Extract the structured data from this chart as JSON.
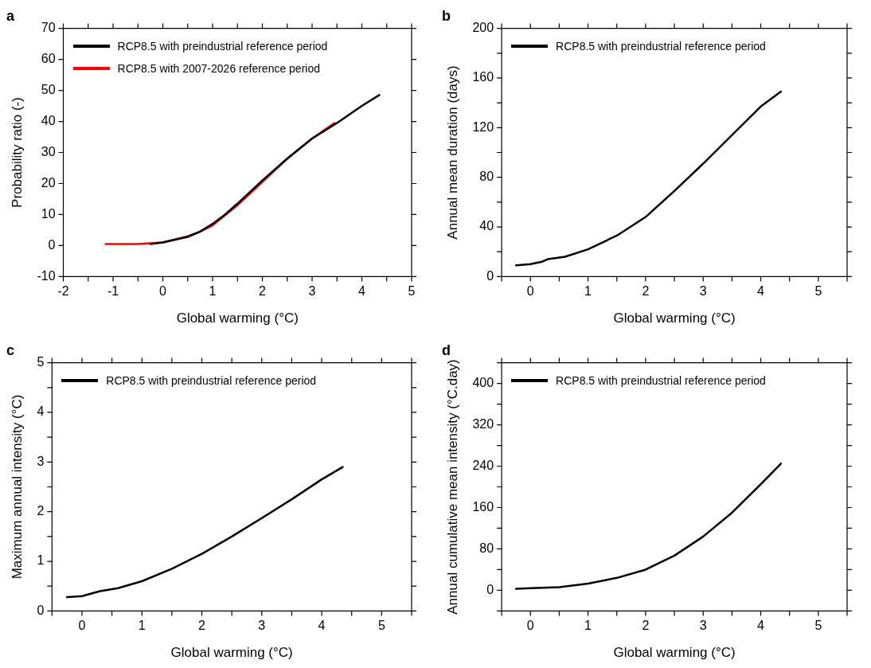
{
  "chart_data": [
    {
      "type": "line",
      "title": "a",
      "xlabel": "Global warming (°C)",
      "ylabel": "Probability ratio (-)",
      "xlim": [
        -2,
        5
      ],
      "xticks": [
        -2,
        {
          "value": -1.5,
          "label": null
        },
        -1,
        {
          "value": -0.5,
          "label": null
        },
        0,
        {
          "value": 0.5,
          "label": null
        },
        1,
        {
          "value": 1.5,
          "label": null
        },
        2,
        {
          "value": 2.5,
          "label": null
        },
        3,
        {
          "value": 3.5,
          "label": null
        },
        4,
        {
          "value": 4.5,
          "label": null
        },
        5
      ],
      "ylim": [
        -10,
        70
      ],
      "yticks": [
        -10,
        0,
        10,
        20,
        30,
        40,
        50,
        60,
        70
      ],
      "grid": false,
      "legend": "top left",
      "marker": "none",
      "line_style": "solid",
      "series": [
        {
          "name": "RCP8.5 with preindustrial reference period",
          "color": "#000000",
          "x": [
            -0.25,
            0,
            0.5,
            0.75,
            1,
            1.25,
            1.5,
            2,
            2.5,
            3,
            3.5,
            4,
            4.35
          ],
          "values": [
            0.5,
            1,
            2.8,
            4.5,
            7,
            10,
            13.5,
            21,
            28,
            34.5,
            39.5,
            45,
            48.5
          ]
        },
        {
          "name": "RCP8.5 with 2007-2026 reference period",
          "color": "#ff0000",
          "x": [
            -1.15,
            -0.5,
            0,
            0.5,
            0.75,
            1,
            1.5,
            2,
            2.5,
            3,
            3.45
          ],
          "values": [
            0.5,
            0.5,
            1,
            3,
            4.5,
            6.5,
            13,
            20.5,
            28,
            34.5,
            39.5
          ]
        }
      ]
    },
    {
      "type": "line",
      "title": "b",
      "xlabel": "Global warming (°C)",
      "ylabel": "Annual mean duration (days)",
      "xlim": [
        -0.5,
        5.5
      ],
      "xticks": [
        {
          "value": -0.5,
          "label": null
        },
        0,
        {
          "value": 0.5,
          "label": null
        },
        1,
        {
          "value": 1.5,
          "label": null
        },
        2,
        {
          "value": 2.5,
          "label": null
        },
        3,
        {
          "value": 3.5,
          "label": null
        },
        4,
        {
          "value": 4.5,
          "label": null
        },
        5,
        {
          "value": 5.5,
          "label": null
        }
      ],
      "ylim": [
        0,
        200
      ],
      "yticks": [
        0,
        {
          "value": 20,
          "label": null
        },
        40,
        {
          "value": 60,
          "label": null
        },
        80,
        {
          "value": 100,
          "label": null
        },
        120,
        {
          "value": 140,
          "label": null
        },
        160,
        {
          "value": 180,
          "label": null
        },
        200
      ],
      "grid": false,
      "legend": "top left",
      "marker": "none",
      "line_style": "solid",
      "series": [
        {
          "name": "RCP8.5 with preindustrial reference period",
          "color": "#000000",
          "x": [
            -0.25,
            0,
            0.2,
            0.3,
            0.6,
            1,
            1.5,
            2,
            2.5,
            3,
            3.5,
            4,
            4.35
          ],
          "values": [
            9,
            10,
            12,
            14,
            16,
            22,
            33,
            48,
            69,
            91,
            114,
            137,
            149
          ]
        }
      ]
    },
    {
      "type": "line",
      "title": "c",
      "xlabel": "Global warming (°C)",
      "ylabel": "Maximum annual intensity (°C)",
      "xlim": [
        -0.5,
        5.5
      ],
      "xticks": [
        {
          "value": -0.5,
          "label": null
        },
        0,
        {
          "value": 0.5,
          "label": null
        },
        1,
        {
          "value": 1.5,
          "label": null
        },
        2,
        {
          "value": 2.5,
          "label": null
        },
        3,
        {
          "value": 3.5,
          "label": null
        },
        4,
        {
          "value": 4.5,
          "label": null
        },
        5,
        {
          "value": 5.5,
          "label": null
        }
      ],
      "ylim": [
        0,
        5
      ],
      "yticks": [
        0,
        {
          "value": 0.5,
          "label": null
        },
        1,
        {
          "value": 1.5,
          "label": null
        },
        2,
        {
          "value": 2.5,
          "label": null
        },
        3,
        {
          "value": 3.5,
          "label": null
        },
        4,
        {
          "value": 4.5,
          "label": null
        },
        5
      ],
      "grid": false,
      "legend": "top left",
      "marker": "none",
      "line_style": "solid",
      "series": [
        {
          "name": "RCP8.5 with preindustrial reference period",
          "color": "#000000",
          "x": [
            -0.25,
            0,
            0.3,
            0.6,
            1,
            1.5,
            2,
            2.5,
            3,
            3.5,
            4,
            4.35
          ],
          "values": [
            0.28,
            0.3,
            0.4,
            0.46,
            0.6,
            0.85,
            1.15,
            1.5,
            1.87,
            2.25,
            2.65,
            2.9
          ]
        }
      ]
    },
    {
      "type": "line",
      "title": "d",
      "xlabel": "Global warming (°C)",
      "ylabel": "Annual cumulative mean intensity (°C.day)",
      "xlim": [
        -0.5,
        5.5
      ],
      "xticks": [
        {
          "value": -0.5,
          "label": null
        },
        0,
        {
          "value": 0.5,
          "label": null
        },
        1,
        {
          "value": 1.5,
          "label": null
        },
        2,
        {
          "value": 2.5,
          "label": null
        },
        3,
        {
          "value": 3.5,
          "label": null
        },
        4,
        {
          "value": 4.5,
          "label": null
        },
        5,
        {
          "value": 5.5,
          "label": null
        }
      ],
      "ylim": [
        -40,
        440
      ],
      "yticks": [
        {
          "value": -40,
          "label": null
        },
        0,
        {
          "value": 40,
          "label": null
        },
        80,
        {
          "value": 120,
          "label": null
        },
        160,
        {
          "value": 200,
          "label": null
        },
        240,
        {
          "value": 280,
          "label": null
        },
        320,
        {
          "value": 360,
          "label": null
        },
        400,
        {
          "value": 440,
          "label": null
        }
      ],
      "grid": false,
      "legend": "top left",
      "marker": "none",
      "line_style": "solid",
      "series": [
        {
          "name": "RCP8.5 with preindustrial reference period",
          "color": "#000000",
          "x": [
            -0.25,
            0,
            0.5,
            1,
            1.5,
            2,
            2.5,
            3,
            3.5,
            4,
            4.35
          ],
          "values": [
            3,
            4,
            6,
            13,
            24,
            40,
            67,
            104,
            150,
            205,
            245
          ]
        }
      ]
    }
  ]
}
